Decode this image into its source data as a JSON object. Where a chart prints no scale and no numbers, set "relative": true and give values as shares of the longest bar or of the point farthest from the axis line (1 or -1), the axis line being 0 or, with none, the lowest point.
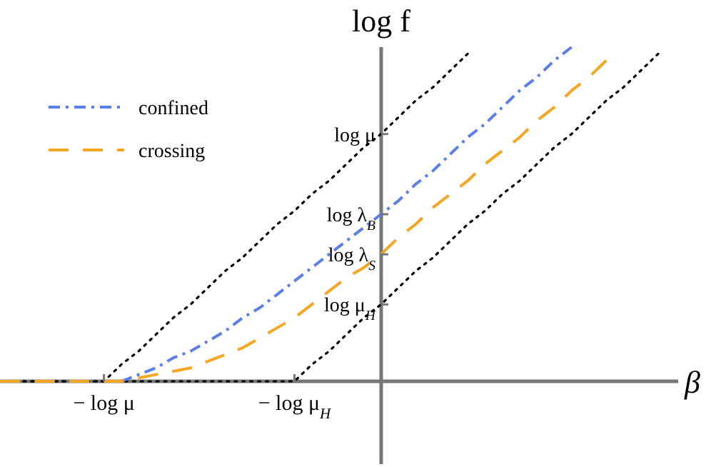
{
  "chart_data": {
    "type": "line",
    "xlabel": "β",
    "ylabel": "log f",
    "relative": true,
    "categories": [
      null,
      null,
      null,
      null,
      null,
      null,
      "− log μ",
      null,
      null,
      null,
      null,
      null,
      null,
      null,
      null,
      null,
      null,
      "− log μ$_{H}$",
      null,
      null,
      null,
      null,
      null,
      null,
      null,
      null,
      null,
      null,
      null,
      null,
      null,
      null,
      null,
      null,
      null,
      null,
      null,
      null,
      null
    ],
    "annotations": [
      "log μ",
      "log λ$_{B}$",
      "log λ$_{S}$",
      "log μ$_{H}$"
    ],
    "legend": "top left",
    "marker": "none",
    "series": [
      {
        "color": "#000000",
        "line_style": "dotted",
        "values": [
          0,
          0,
          0,
          0,
          0,
          0,
          0,
          0.05,
          0.09,
          0.14,
          0.19,
          0.23,
          0.28,
          0.33,
          0.37,
          0.42,
          0.47,
          0.51,
          0.56,
          0.6,
          0.65,
          0.7,
          0.74,
          0.79,
          0.84,
          0.88,
          0.93,
          0.98,
          null,
          null,
          null,
          null,
          null,
          null,
          null,
          null,
          null,
          null,
          null
        ]
      },
      {
        "color": "#000000",
        "line_style": "dotted",
        "values": [
          0,
          0,
          0,
          0,
          0,
          0,
          0,
          0,
          0,
          0,
          0,
          0,
          0,
          0,
          0,
          0,
          0,
          0,
          0.05,
          0.09,
          0.14,
          0.19,
          0.23,
          0.28,
          0.33,
          0.37,
          0.42,
          0.47,
          0.51,
          0.56,
          0.6,
          0.65,
          0.7,
          0.74,
          0.79,
          0.84,
          0.88,
          0.93,
          0.98
        ]
      },
      {
        "name": "confined",
        "color": "#5b7fe8",
        "line_style": "dashdot",
        "values": [
          null,
          null,
          null,
          null,
          null,
          null,
          null,
          0,
          0.02,
          0.04,
          0.07,
          0.09,
          0.12,
          0.15,
          0.19,
          0.22,
          0.26,
          0.3,
          0.34,
          0.38,
          0.42,
          0.46,
          0.5,
          0.54,
          0.59,
          0.63,
          0.68,
          0.73,
          0.77,
          0.82,
          0.87,
          0.91,
          0.96,
          1,
          null,
          null,
          null,
          null,
          null
        ]
      },
      {
        "name": "crossing",
        "color": "#f5a623",
        "line_style": "dashed",
        "values": [
          0,
          0,
          0,
          0,
          0,
          0,
          0,
          0,
          0.01,
          0.02,
          0.03,
          0.04,
          0.06,
          0.08,
          0.1,
          0.13,
          0.16,
          0.19,
          0.23,
          0.27,
          0.31,
          0.34,
          0.38,
          0.43,
          0.47,
          0.52,
          0.56,
          0.6,
          0.65,
          0.69,
          0.73,
          0.78,
          0.82,
          0.87,
          0.91,
          0.96,
          null,
          null,
          null
        ]
      }
    ]
  }
}
